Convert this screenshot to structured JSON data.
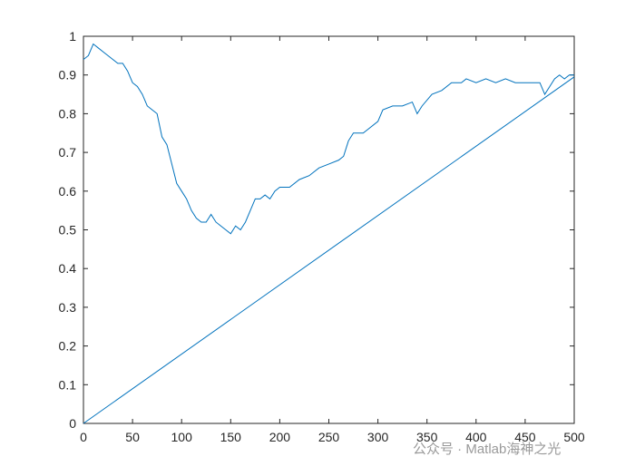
{
  "chart_data": {
    "type": "line",
    "xlim": [
      0,
      500
    ],
    "xticks": [
      0,
      50,
      100,
      150,
      200,
      250,
      300,
      350,
      400,
      450,
      500
    ],
    "ylim": [
      0,
      1
    ],
    "yticks": [
      0,
      0.1,
      0.2,
      0.3,
      0.4,
      0.5,
      0.6,
      0.7,
      0.8,
      0.9,
      1
    ],
    "series": [
      {
        "color": "#0072bd",
        "x": [
          0,
          5,
          10,
          15,
          20,
          25,
          30,
          35,
          40,
          45,
          50,
          55,
          60,
          65,
          70,
          75,
          80,
          85,
          90,
          95,
          100,
          105,
          110,
          115,
          120,
          125,
          130,
          135,
          140,
          145,
          150,
          155,
          160,
          165,
          170,
          175,
          180,
          185,
          190,
          195,
          200,
          210,
          220,
          230,
          240,
          250,
          260,
          265,
          270,
          275,
          285,
          290,
          300,
          305,
          315,
          325,
          335,
          340,
          345,
          355,
          365,
          375,
          385,
          390,
          400,
          410,
          420,
          430,
          440,
          450,
          460,
          465,
          470,
          475,
          480,
          485,
          490,
          495,
          500
        ],
        "values": [
          0.94,
          0.95,
          0.98,
          0.97,
          0.96,
          0.95,
          0.94,
          0.93,
          0.93,
          0.91,
          0.88,
          0.87,
          0.85,
          0.82,
          0.81,
          0.8,
          0.74,
          0.72,
          0.67,
          0.62,
          0.6,
          0.58,
          0.55,
          0.53,
          0.52,
          0.52,
          0.54,
          0.52,
          0.51,
          0.5,
          0.49,
          0.51,
          0.5,
          0.52,
          0.55,
          0.58,
          0.58,
          0.59,
          0.58,
          0.6,
          0.61,
          0.61,
          0.63,
          0.64,
          0.66,
          0.67,
          0.68,
          0.69,
          0.73,
          0.75,
          0.75,
          0.76,
          0.78,
          0.81,
          0.82,
          0.82,
          0.83,
          0.8,
          0.82,
          0.85,
          0.86,
          0.88,
          0.88,
          0.89,
          0.88,
          0.89,
          0.88,
          0.89,
          0.88,
          0.88,
          0.88,
          0.88,
          0.85,
          0.87,
          0.89,
          0.9,
          0.89,
          0.9,
          0.9
        ]
      },
      {
        "color": "#0072bd",
        "x": [
          0,
          500
        ],
        "values": [
          0,
          0.895
        ]
      }
    ]
  },
  "watermark": "公众号 · Matlab海神之光"
}
